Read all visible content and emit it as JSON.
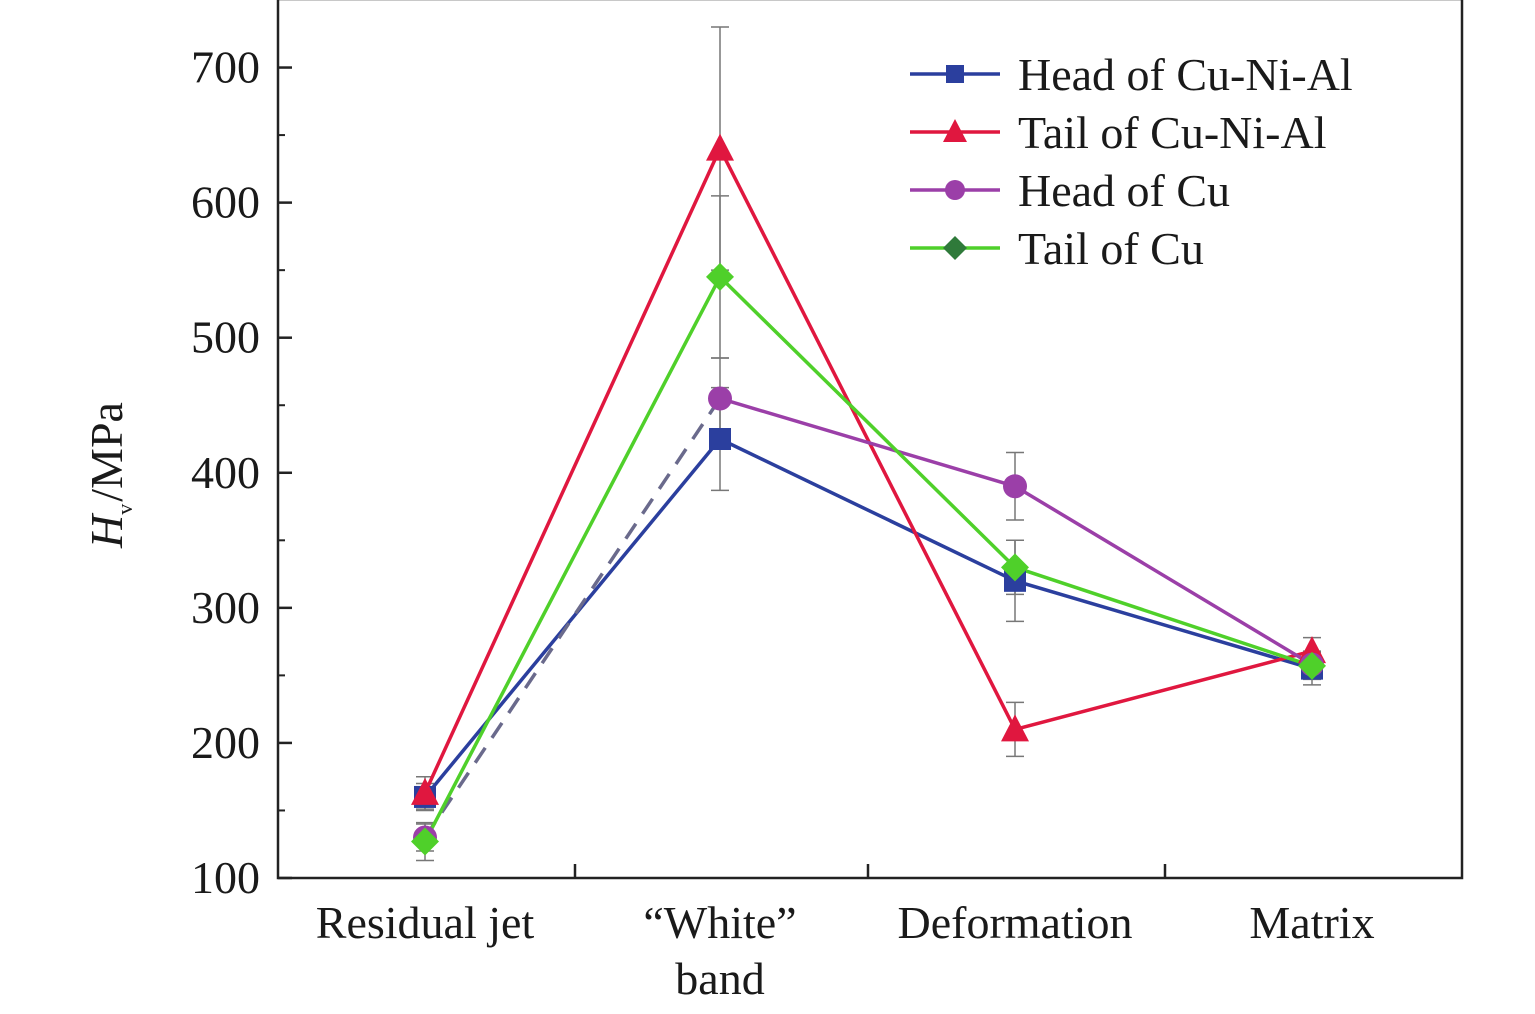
{
  "chart_data": {
    "type": "line",
    "title": "",
    "xlabel": "",
    "ylabel": {
      "symbol": "H",
      "subscript": "v",
      "unit": "/MPa"
    },
    "categories": [
      [
        "Residual jet"
      ],
      [
        "“White”",
        "band"
      ],
      [
        "Deformation"
      ],
      [
        "Matrix"
      ]
    ],
    "ylim": [
      100,
      750
    ],
    "yticks": [
      100,
      200,
      300,
      400,
      500,
      600,
      700
    ],
    "legend_position": "top-right",
    "series": [
      {
        "name": "Head of Cu-Ni-Al",
        "color": "#2b3f9e",
        "marker": "square",
        "values": [
          160,
          425,
          320,
          255
        ],
        "errors": [
          10,
          38,
          30,
          12
        ]
      },
      {
        "name": "Tail of Cu-Ni-Al",
        "color": "#e0173f",
        "marker": "triangle",
        "values": [
          163,
          640,
          210,
          268
        ],
        "errors": [
          12,
          90,
          20,
          10
        ]
      },
      {
        "name": "Head of Cu",
        "color": "#9b3fa8",
        "marker": "circle",
        "values": [
          130,
          455,
          390,
          258
        ],
        "errors": [
          10,
          30,
          25,
          10
        ]
      },
      {
        "name": "Tail of Cu",
        "color": "#4fd02a",
        "marker": "diamond",
        "values": [
          127,
          545,
          330,
          257
        ],
        "errors": [
          14,
          60,
          20,
          10
        ]
      }
    ],
    "legend_marker_color_tail_cu": "#2f7a3a",
    "dashed_link": {
      "series": "Head of Cu",
      "from_category": 0,
      "to_category": 1,
      "color": "#6a6a8c"
    }
  }
}
